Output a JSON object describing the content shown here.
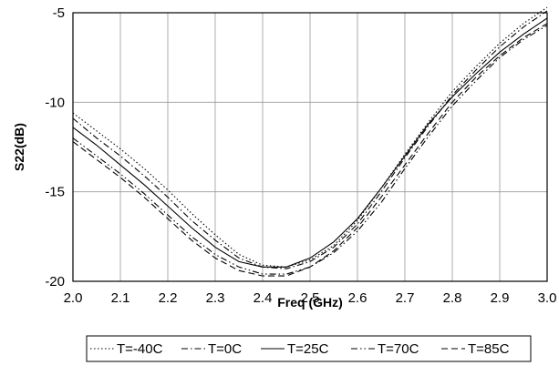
{
  "chart_data": {
    "type": "line",
    "title": "",
    "xlabel": "Freq (GHz)",
    "ylabel": "S22(dB)",
    "xlim": [
      2.0,
      3.0
    ],
    "ylim": [
      -20,
      -5
    ],
    "x_ticks": [
      "2.0",
      "2.1",
      "2.2",
      "2.3",
      "2.4",
      "2.5",
      "2.6",
      "2.7",
      "2.8",
      "2.9",
      "3.0"
    ],
    "y_ticks": [
      "-5",
      "-10",
      "-15",
      "-20"
    ],
    "grid": true,
    "legend_position": "bottom",
    "x": [
      2.0,
      2.05,
      2.1,
      2.15,
      2.2,
      2.25,
      2.3,
      2.35,
      2.4,
      2.45,
      2.5,
      2.55,
      2.6,
      2.65,
      2.7,
      2.75,
      2.8,
      2.85,
      2.9,
      2.95,
      3.0
    ],
    "series": [
      {
        "name": "T=-40C",
        "line_style": "dotted",
        "values": [
          -10.6,
          -11.6,
          -12.6,
          -13.7,
          -14.9,
          -16.2,
          -17.4,
          -18.5,
          -19.1,
          -19.2,
          -18.8,
          -18.0,
          -16.6,
          -14.8,
          -12.9,
          -11.1,
          -9.4,
          -8.0,
          -6.7,
          -5.6,
          -4.7
        ]
      },
      {
        "name": "T=0C",
        "line_style": "dash-dot",
        "values": [
          -10.9,
          -12.0,
          -13.0,
          -14.1,
          -15.3,
          -16.6,
          -17.7,
          -18.7,
          -19.2,
          -19.3,
          -18.9,
          -18.1,
          -16.8,
          -15.0,
          -13.1,
          -11.3,
          -9.6,
          -8.2,
          -6.9,
          -5.8,
          -4.9
        ]
      },
      {
        "name": "T=25C",
        "line_style": "solid",
        "values": [
          -11.4,
          -12.4,
          -13.5,
          -14.6,
          -15.8,
          -17.0,
          -18.1,
          -18.9,
          -19.2,
          -19.2,
          -18.7,
          -17.8,
          -16.5,
          -14.8,
          -13.0,
          -11.2,
          -9.7,
          -8.4,
          -7.2,
          -6.2,
          -5.3
        ]
      },
      {
        "name": "T=70C",
        "line_style": "dash-dot-dot",
        "values": [
          -12.0,
          -13.0,
          -14.0,
          -15.1,
          -16.3,
          -17.5,
          -18.5,
          -19.2,
          -19.6,
          -19.6,
          -19.2,
          -18.4,
          -17.2,
          -15.6,
          -13.7,
          -11.9,
          -10.2,
          -8.8,
          -7.5,
          -6.5,
          -5.7
        ]
      },
      {
        "name": "T=85C",
        "line_style": "dashed",
        "values": [
          -12.2,
          -13.2,
          -14.2,
          -15.3,
          -16.5,
          -17.7,
          -18.7,
          -19.4,
          -19.7,
          -19.7,
          -19.2,
          -18.3,
          -17.0,
          -15.3,
          -13.5,
          -11.7,
          -10.0,
          -8.6,
          -7.4,
          -6.4,
          -5.6
        ]
      }
    ]
  }
}
